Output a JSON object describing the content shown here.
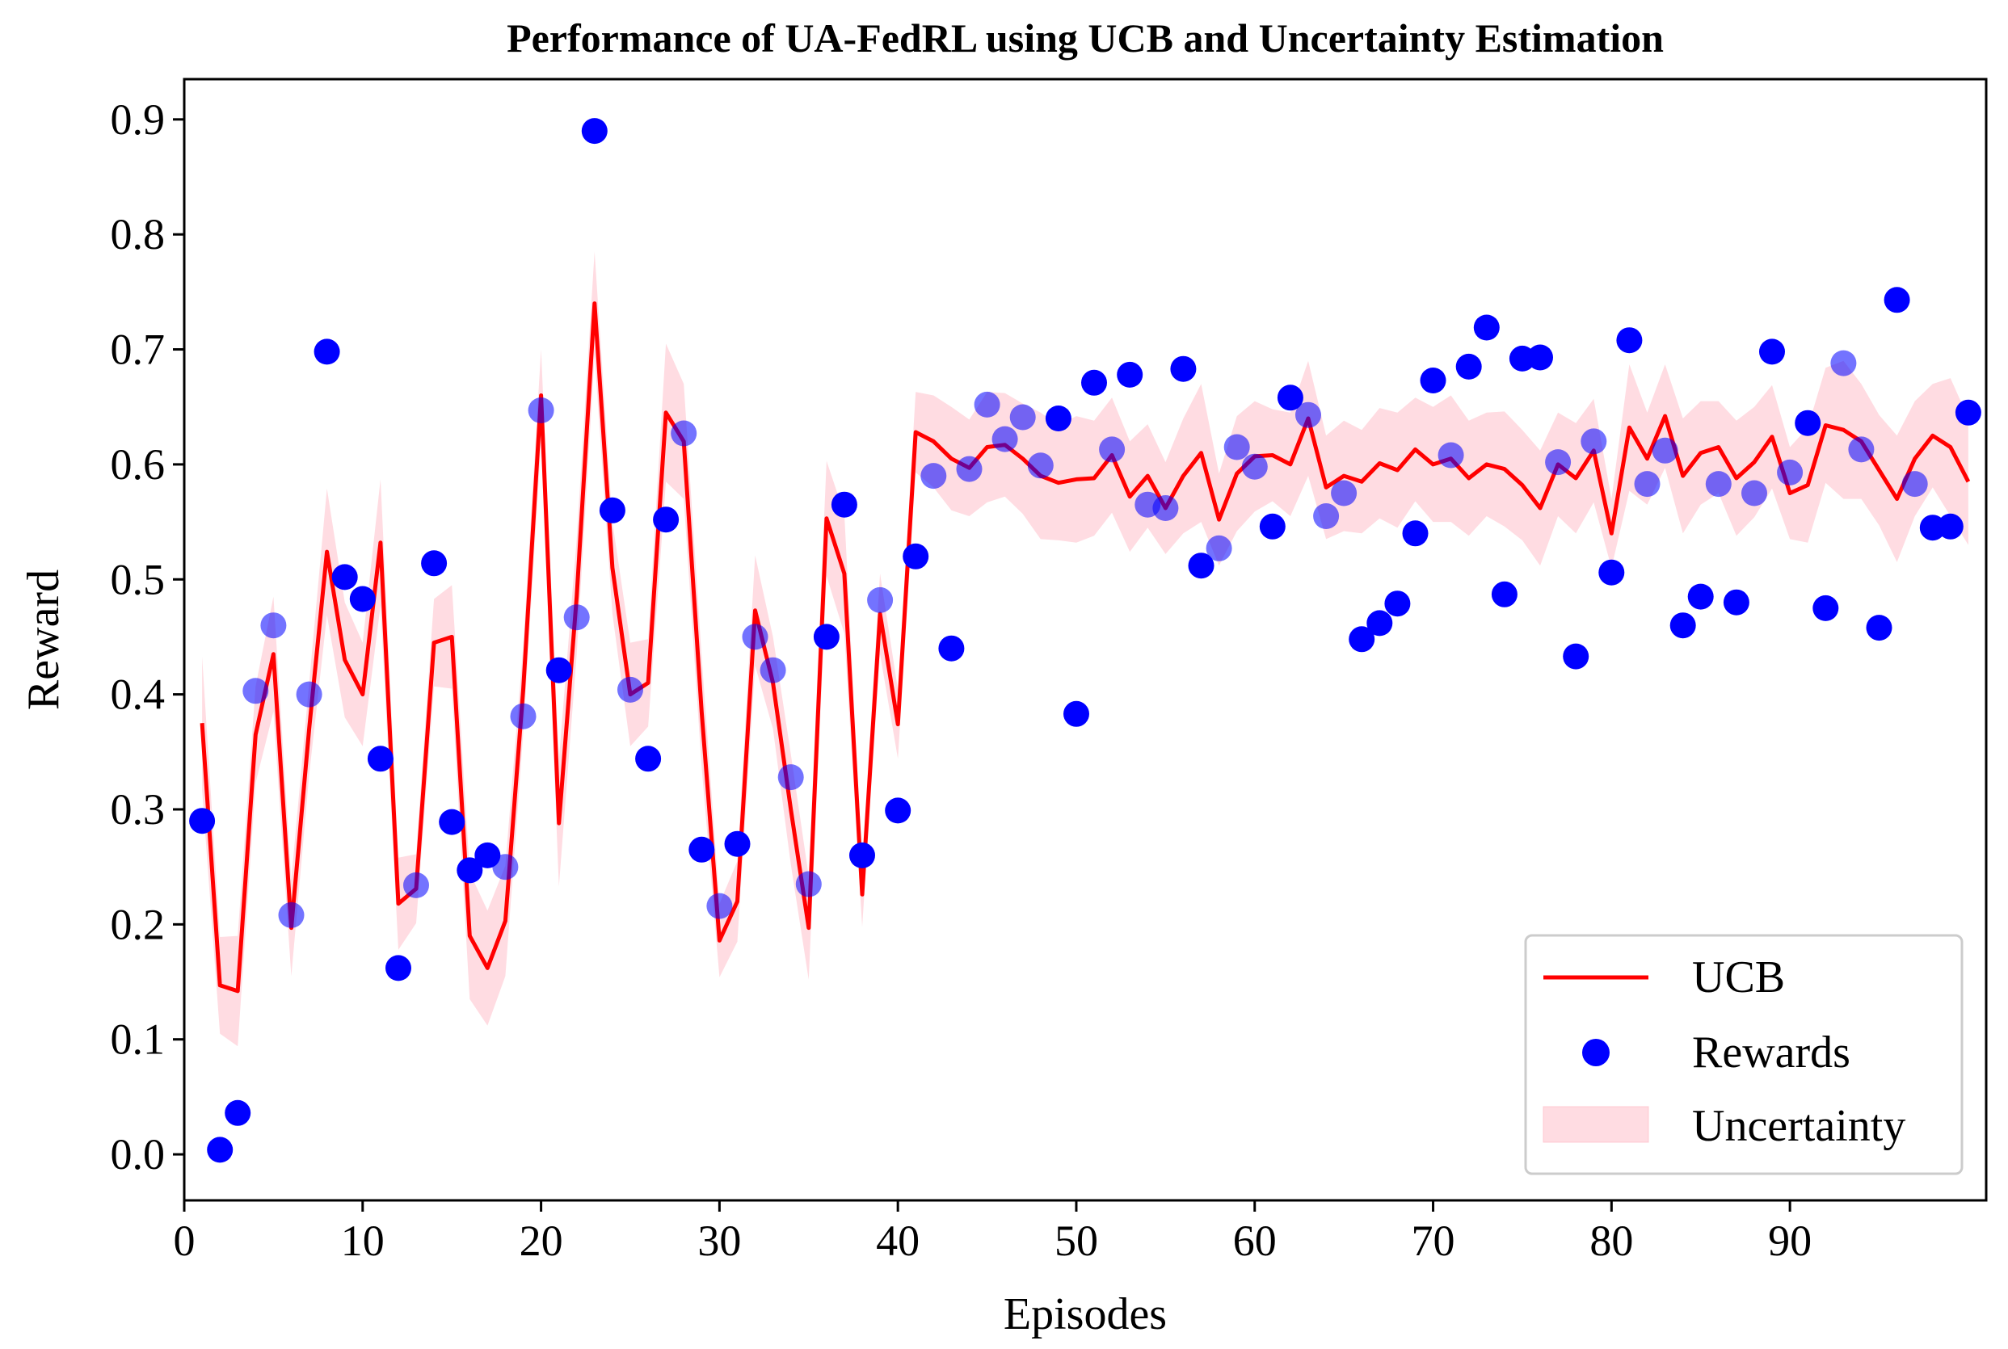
{
  "chart_data": {
    "type": "scatter",
    "title": "Performance of UA-FedRL using UCB and Uncertainty Estimation",
    "xlabel": "Episodes",
    "ylabel": "Reward",
    "xlim": [
      0,
      101
    ],
    "ylim": [
      -0.04,
      0.935
    ],
    "xticks": [
      0,
      10,
      20,
      30,
      40,
      50,
      60,
      70,
      80,
      90
    ],
    "xtick_labels": [
      "0",
      "10",
      "20",
      "30",
      "40",
      "50",
      "60",
      "70",
      "80",
      "90"
    ],
    "yticks": [
      0.0,
      0.1,
      0.2,
      0.3,
      0.4,
      0.5,
      0.6,
      0.7,
      0.8,
      0.9
    ],
    "ytick_labels": [
      "0.0",
      "0.1",
      "0.2",
      "0.3",
      "0.4",
      "0.5",
      "0.6",
      "0.7",
      "0.8",
      "0.9"
    ],
    "legend_position": "bottom-right",
    "legend": [
      "UCB",
      "Rewards",
      "Uncertainty"
    ],
    "colors": {
      "ucb": "#ff0000",
      "rewards": "#0000ff",
      "uncertainty": "#ffc0cb"
    },
    "x": [
      1,
      2,
      3,
      4,
      5,
      6,
      7,
      8,
      9,
      10,
      11,
      12,
      13,
      14,
      15,
      16,
      17,
      18,
      19,
      20,
      21,
      22,
      23,
      24,
      25,
      26,
      27,
      28,
      29,
      30,
      31,
      32,
      33,
      34,
      35,
      36,
      37,
      38,
      39,
      40,
      41,
      42,
      43,
      44,
      45,
      46,
      47,
      48,
      49,
      50,
      51,
      52,
      53,
      54,
      55,
      56,
      57,
      58,
      59,
      60,
      61,
      62,
      63,
      64,
      65,
      66,
      67,
      68,
      69,
      70,
      71,
      72,
      73,
      74,
      75,
      76,
      77,
      78,
      79,
      80,
      81,
      82,
      83,
      84,
      85,
      86,
      87,
      88,
      89,
      90,
      91,
      92,
      93,
      94,
      95,
      96,
      97,
      98,
      99,
      100
    ],
    "series": [
      {
        "name": "UCB",
        "type": "line",
        "values": [
          0.375,
          0.147,
          0.142,
          0.365,
          0.435,
          0.197,
          0.37,
          0.524,
          0.43,
          0.4,
          0.532,
          0.218,
          0.231,
          0.445,
          0.45,
          0.19,
          0.162,
          0.203,
          0.404,
          0.66,
          0.288,
          0.485,
          0.74,
          0.51,
          0.4,
          0.41,
          0.645,
          0.62,
          0.385,
          0.186,
          0.22,
          0.473,
          0.41,
          0.3,
          0.197,
          0.553,
          0.505,
          0.226,
          0.47,
          0.374,
          0.628,
          0.62,
          0.605,
          0.597,
          0.615,
          0.617,
          0.605,
          0.59,
          0.584,
          0.587,
          0.588,
          0.608,
          0.572,
          0.59,
          0.562,
          0.59,
          0.61,
          0.552,
          0.592,
          0.607,
          0.608,
          0.6,
          0.64,
          0.58,
          0.59,
          0.585,
          0.601,
          0.595,
          0.613,
          0.6,
          0.605,
          0.588,
          0.6,
          0.596,
          0.582,
          0.562,
          0.6,
          0.588,
          0.612,
          0.54,
          0.632,
          0.605,
          0.642,
          0.59,
          0.61,
          0.615,
          0.588,
          0.602,
          0.624,
          0.575,
          0.582,
          0.634,
          0.63,
          0.62,
          0.595,
          0.57,
          0.605,
          0.625,
          0.615,
          0.585
        ]
      },
      {
        "name": "Rewards",
        "type": "scatter",
        "values": [
          0.29,
          0.004,
          0.036,
          0.403,
          0.46,
          0.208,
          0.4,
          0.698,
          0.502,
          0.483,
          0.344,
          0.162,
          0.234,
          0.514,
          0.289,
          0.247,
          0.26,
          0.25,
          0.381,
          0.647,
          0.421,
          0.467,
          0.89,
          0.56,
          0.404,
          0.344,
          0.552,
          0.627,
          0.265,
          0.216,
          0.27,
          0.45,
          0.421,
          0.328,
          0.235,
          0.45,
          0.565,
          0.26,
          0.482,
          0.299,
          0.52,
          0.59,
          0.44,
          0.596,
          0.652,
          0.622,
          0.641,
          0.599,
          0.64,
          0.383,
          0.671,
          0.613,
          0.678,
          0.565,
          0.562,
          0.683,
          0.512,
          0.527,
          0.615,
          0.598,
          0.546,
          0.658,
          0.643,
          0.555,
          0.575,
          0.448,
          0.462,
          0.479,
          0.54,
          0.673,
          0.608,
          0.685,
          0.719,
          0.487,
          0.692,
          0.693,
          0.602,
          0.433,
          0.62,
          0.506,
          0.708,
          0.583,
          0.612,
          0.46,
          0.485,
          0.583,
          0.48,
          0.575,
          0.698,
          0.593,
          0.636,
          0.475,
          0.688,
          0.613,
          0.458,
          0.743,
          0.583,
          0.545,
          0.546,
          0.645
        ]
      },
      {
        "name": "Uncertainty",
        "type": "area",
        "half_width": [
          0.058,
          0.042,
          0.048,
          0.042,
          0.05,
          0.042,
          0.04,
          0.055,
          0.05,
          0.045,
          0.055,
          0.04,
          0.03,
          0.038,
          0.045,
          0.055,
          0.05,
          0.048,
          0.038,
          0.04,
          0.055,
          0.05,
          0.045,
          0.04,
          0.045,
          0.038,
          0.06,
          0.05,
          0.048,
          0.032,
          0.035,
          0.048,
          0.04,
          0.048,
          0.045,
          0.05,
          0.052,
          0.028,
          0.035,
          0.03,
          0.035,
          0.04,
          0.045,
          0.042,
          0.048,
          0.045,
          0.048,
          0.055,
          0.05,
          0.055,
          0.05,
          0.05,
          0.048,
          0.045,
          0.04,
          0.05,
          0.06,
          0.04,
          0.05,
          0.048,
          0.04,
          0.045,
          0.05,
          0.045,
          0.048,
          0.045,
          0.048,
          0.05,
          0.045,
          0.05,
          0.055,
          0.05,
          0.045,
          0.05,
          0.048,
          0.05,
          0.045,
          0.048,
          0.045,
          0.03,
          0.055,
          0.04,
          0.045,
          0.05,
          0.045,
          0.04,
          0.05,
          0.048,
          0.045,
          0.04,
          0.05,
          0.05,
          0.06,
          0.05,
          0.048,
          0.055,
          0.05,
          0.045,
          0.06,
          0.055
        ]
      }
    ]
  }
}
